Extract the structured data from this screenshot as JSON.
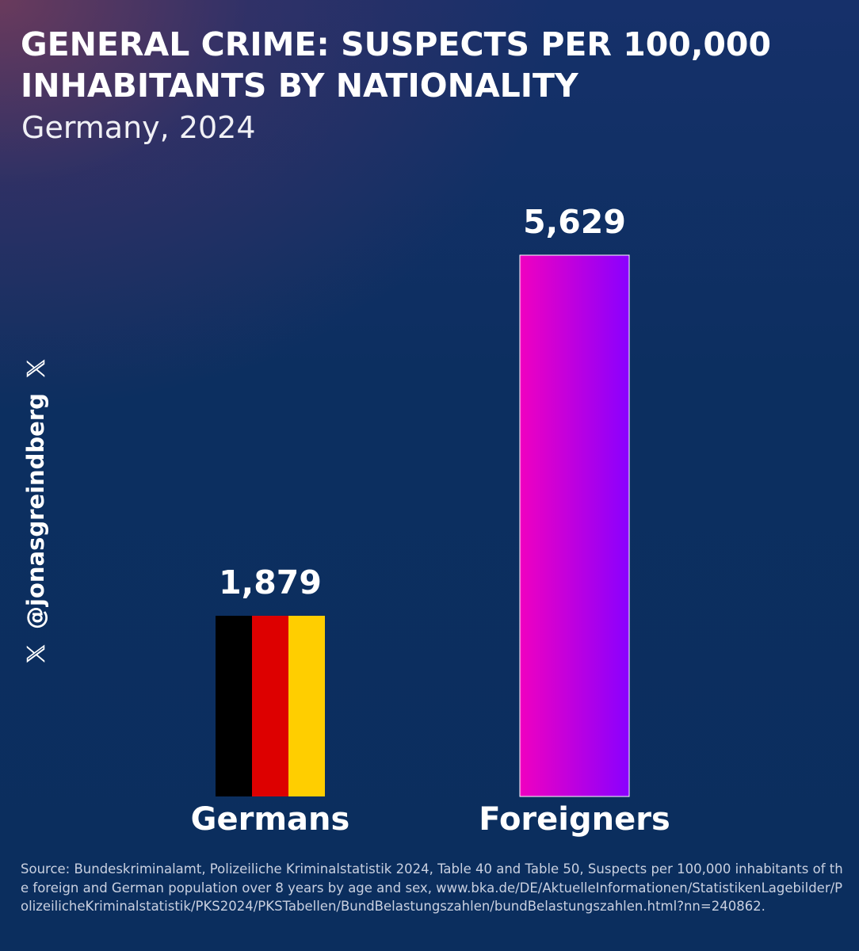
{
  "chart_data": {
    "type": "bar",
    "title": "GENERAL CRIME: SUSPECTS PER 100,000 INHABITANTS BY NATIONALITY",
    "subtitle": "Germany, 2024",
    "categories": [
      "Germans",
      "Foreigners"
    ],
    "values": [
      1879,
      5629
    ],
    "value_labels": [
      "1,879",
      "5,629"
    ],
    "xlabel": "",
    "ylabel": "",
    "ylim": [
      0,
      5629
    ],
    "grid": false,
    "legend": "none",
    "colors": {
      "germans_flag": [
        "#000000",
        "#dd0000",
        "#ffce00"
      ],
      "foreigners_gradient": [
        "#f000c0",
        "#8a00ff"
      ]
    }
  },
  "watermark": {
    "handle": "@jonasgreindberg",
    "icon": "x-logo-icon"
  },
  "source": {
    "text": "Source: Bundeskriminalamt, Polizeiliche Kriminalstatistik 2024, Table 40 and Table 50, Suspects per 100,000 inhabitants of the foreign and German population over 8 years by age and sex, www.bka.de/DE/AktuelleInformationen/StatistikenLagebilder/PolizeilicheKriminalstatistik/PKS2024/PKSTabellen/BundBelastungszahlen/bundBelastungszahlen.html?nn=240862."
  }
}
